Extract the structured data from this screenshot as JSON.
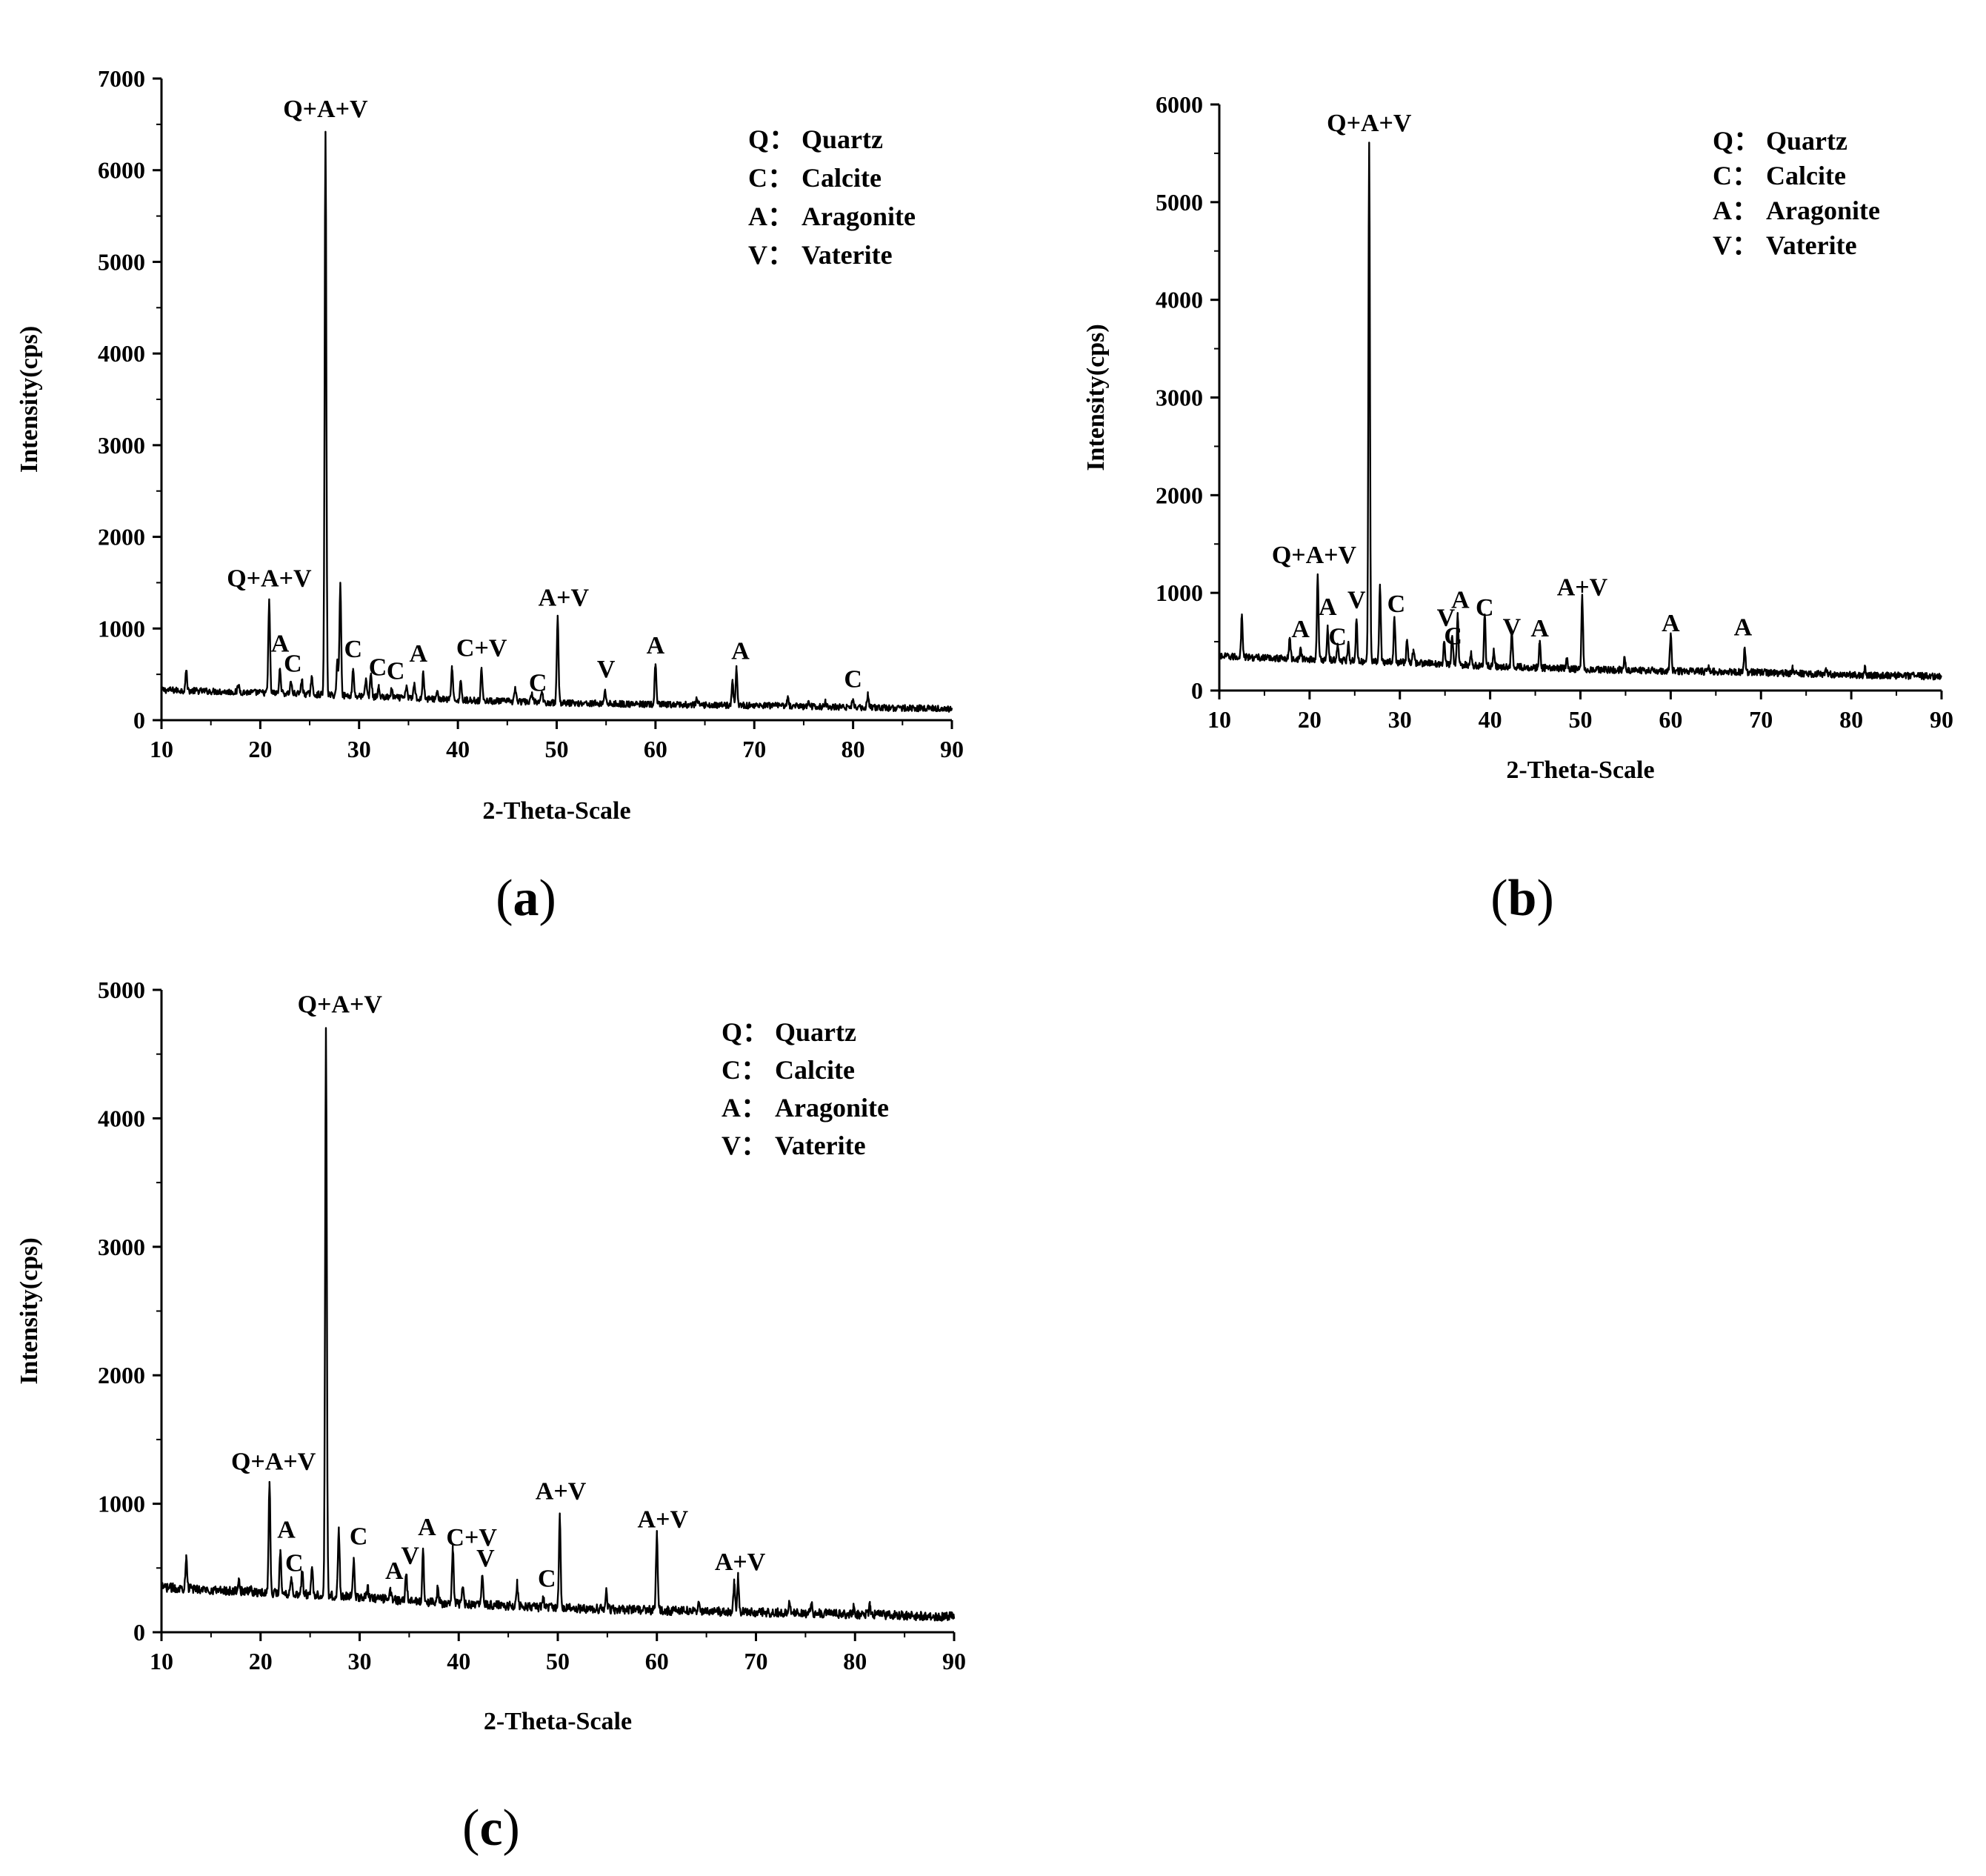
{
  "chart_data": [
    {
      "id": "a",
      "type": "line",
      "panel_label": "a",
      "xlabel": "2-Theta-Scale",
      "ylabel": "Intensity(cps)",
      "xlim": [
        10,
        90
      ],
      "ylim": [
        0,
        7000
      ],
      "xticks": [
        10,
        20,
        30,
        40,
        50,
        60,
        70,
        80,
        90
      ],
      "yticks": [
        0,
        1000,
        2000,
        3000,
        4000,
        5000,
        6000,
        7000
      ],
      "legend": [
        "Q：Quartz",
        "C：Calcite",
        "A：Aragonite",
        "V：Vaterite"
      ],
      "baseline": [
        [
          10,
          330
        ],
        [
          20,
          300
        ],
        [
          26,
          280
        ],
        [
          30,
          260
        ],
        [
          40,
          220
        ],
        [
          50,
          190
        ],
        [
          60,
          170
        ],
        [
          70,
          160
        ],
        [
          80,
          140
        ],
        [
          90,
          125
        ]
      ],
      "peaks": [
        {
          "x": 12.5,
          "y": 540
        },
        {
          "x": 17.8,
          "y": 380
        },
        {
          "x": 20.9,
          "y": 1300
        },
        {
          "x": 22.0,
          "y": 560
        },
        {
          "x": 23.1,
          "y": 420
        },
        {
          "x": 24.2,
          "y": 440
        },
        {
          "x": 25.2,
          "y": 470
        },
        {
          "x": 26.6,
          "y": 6420
        },
        {
          "x": 27.8,
          "y": 640
        },
        {
          "x": 28.1,
          "y": 1500
        },
        {
          "x": 29.4,
          "y": 560
        },
        {
          "x": 30.7,
          "y": 450
        },
        {
          "x": 31.2,
          "y": 510
        },
        {
          "x": 32.0,
          "y": 360
        },
        {
          "x": 33.3,
          "y": 330
        },
        {
          "x": 34.8,
          "y": 380
        },
        {
          "x": 35.6,
          "y": 410
        },
        {
          "x": 36.5,
          "y": 520
        },
        {
          "x": 37.9,
          "y": 320
        },
        {
          "x": 39.4,
          "y": 560
        },
        {
          "x": 40.3,
          "y": 430
        },
        {
          "x": 42.4,
          "y": 560
        },
        {
          "x": 45.8,
          "y": 360
        },
        {
          "x": 47.5,
          "y": 300
        },
        {
          "x": 48.5,
          "y": 310
        },
        {
          "x": 50.1,
          "y": 1140
        },
        {
          "x": 54.9,
          "y": 330
        },
        {
          "x": 60.0,
          "y": 610
        },
        {
          "x": 64.2,
          "y": 230
        },
        {
          "x": 67.8,
          "y": 420
        },
        {
          "x": 68.2,
          "y": 560
        },
        {
          "x": 73.4,
          "y": 240
        },
        {
          "x": 75.5,
          "y": 210
        },
        {
          "x": 77.2,
          "y": 200
        },
        {
          "x": 80.0,
          "y": 230
        },
        {
          "x": 81.5,
          "y": 280
        }
      ],
      "annotations": [
        {
          "text": "Q+A+V",
          "x": 26.6,
          "y": 6530
        },
        {
          "text": "Q+A+V",
          "x": 20.9,
          "y": 1410
        },
        {
          "text": "A",
          "x": 22.0,
          "y": 700
        },
        {
          "text": "C",
          "x": 23.3,
          "y": 480
        },
        {
          "text": "C",
          "x": 29.4,
          "y": 640
        },
        {
          "text": "C",
          "x": 31.9,
          "y": 440
        },
        {
          "text": "C",
          "x": 33.7,
          "y": 400
        },
        {
          "text": "A",
          "x": 36.0,
          "y": 590
        },
        {
          "text": "C+V",
          "x": 42.4,
          "y": 650
        },
        {
          "text": "A+V",
          "x": 50.7,
          "y": 1200
        },
        {
          "text": "C",
          "x": 48.1,
          "y": 270
        },
        {
          "text": "V",
          "x": 55.0,
          "y": 420
        },
        {
          "text": "A",
          "x": 60.0,
          "y": 680
        },
        {
          "text": "A",
          "x": 68.6,
          "y": 620
        },
        {
          "text": "C",
          "x": 80.0,
          "y": 310
        }
      ]
    },
    {
      "id": "b",
      "type": "line",
      "panel_label": "b",
      "xlabel": "2-Theta-Scale",
      "ylabel": "Intensity(cps)",
      "xlim": [
        10,
        90
      ],
      "ylim": [
        0,
        6000
      ],
      "xticks": [
        10,
        20,
        30,
        40,
        50,
        60,
        70,
        80,
        90
      ],
      "yticks": [
        0,
        1000,
        2000,
        3000,
        4000,
        5000,
        6000
      ],
      "legend": [
        "Q：Quartz",
        "C：Calcite",
        "A：Aragonite",
        "V：Vaterite"
      ],
      "baseline": [
        [
          10,
          350
        ],
        [
          20,
          320
        ],
        [
          26,
          300
        ],
        [
          30,
          290
        ],
        [
          40,
          250
        ],
        [
          50,
          220
        ],
        [
          60,
          200
        ],
        [
          70,
          185
        ],
        [
          80,
          160
        ],
        [
          90,
          145
        ]
      ],
      "peaks": [
        {
          "x": 12.5,
          "y": 780
        },
        {
          "x": 17.8,
          "y": 540
        },
        {
          "x": 19.0,
          "y": 420
        },
        {
          "x": 20.9,
          "y": 1190
        },
        {
          "x": 22.0,
          "y": 640
        },
        {
          "x": 23.1,
          "y": 480
        },
        {
          "x": 24.3,
          "y": 500
        },
        {
          "x": 25.2,
          "y": 720
        },
        {
          "x": 26.6,
          "y": 5610
        },
        {
          "x": 27.8,
          "y": 1060
        },
        {
          "x": 29.4,
          "y": 740
        },
        {
          "x": 30.8,
          "y": 520
        },
        {
          "x": 31.5,
          "y": 420
        },
        {
          "x": 34.9,
          "y": 500
        },
        {
          "x": 35.8,
          "y": 560
        },
        {
          "x": 36.4,
          "y": 760
        },
        {
          "x": 37.9,
          "y": 390
        },
        {
          "x": 39.4,
          "y": 780
        },
        {
          "x": 40.4,
          "y": 420
        },
        {
          "x": 42.4,
          "y": 620
        },
        {
          "x": 45.5,
          "y": 510
        },
        {
          "x": 48.5,
          "y": 330
        },
        {
          "x": 50.2,
          "y": 980
        },
        {
          "x": 54.9,
          "y": 340
        },
        {
          "x": 60.0,
          "y": 580
        },
        {
          "x": 64.2,
          "y": 260
        },
        {
          "x": 68.2,
          "y": 440
        },
        {
          "x": 73.5,
          "y": 230
        },
        {
          "x": 77.2,
          "y": 210
        },
        {
          "x": 81.5,
          "y": 230
        }
      ],
      "annotations": [
        {
          "text": "Q+A+V",
          "x": 26.6,
          "y": 5680
        },
        {
          "text": "Q+A+V",
          "x": 20.5,
          "y": 1260
        },
        {
          "text": "A",
          "x": 19.0,
          "y": 500
        },
        {
          "text": "A",
          "x": 22.0,
          "y": 730
        },
        {
          "text": "C",
          "x": 23.1,
          "y": 420
        },
        {
          "text": "V",
          "x": 25.2,
          "y": 800
        },
        {
          "text": "C",
          "x": 29.6,
          "y": 760
        },
        {
          "text": "V",
          "x": 35.1,
          "y": 620
        },
        {
          "text": "C",
          "x": 35.9,
          "y": 430
        },
        {
          "text": "A",
          "x": 36.7,
          "y": 800
        },
        {
          "text": "C",
          "x": 39.4,
          "y": 720
        },
        {
          "text": "V",
          "x": 42.4,
          "y": 520
        },
        {
          "text": "A",
          "x": 45.5,
          "y": 510
        },
        {
          "text": "A+V",
          "x": 50.2,
          "y": 930
        },
        {
          "text": "A",
          "x": 60.0,
          "y": 560
        },
        {
          "text": "A",
          "x": 68.0,
          "y": 520
        }
      ]
    },
    {
      "id": "c",
      "type": "line",
      "panel_label": "c",
      "xlabel": "2-Theta-Scale",
      "ylabel": "Intensity(cps)",
      "xlim": [
        10,
        90
      ],
      "ylim": [
        0,
        5000
      ],
      "xticks": [
        10,
        20,
        30,
        40,
        50,
        60,
        70,
        80,
        90
      ],
      "yticks": [
        0,
        1000,
        2000,
        3000,
        4000,
        5000
      ],
      "legend": [
        "Q：Quartz",
        "C：Calcite",
        "A：Aragonite",
        "V：Vaterite"
      ],
      "baseline": [
        [
          10,
          350
        ],
        [
          20,
          310
        ],
        [
          26,
          290
        ],
        [
          30,
          270
        ],
        [
          40,
          220
        ],
        [
          50,
          190
        ],
        [
          60,
          170
        ],
        [
          70,
          155
        ],
        [
          80,
          140
        ],
        [
          90,
          120
        ]
      ],
      "peaks": [
        {
          "x": 12.5,
          "y": 600
        },
        {
          "x": 17.8,
          "y": 420
        },
        {
          "x": 19.0,
          "y": 350
        },
        {
          "x": 20.9,
          "y": 1170
        },
        {
          "x": 22.0,
          "y": 640
        },
        {
          "x": 23.1,
          "y": 430
        },
        {
          "x": 24.2,
          "y": 470
        },
        {
          "x": 25.2,
          "y": 500
        },
        {
          "x": 26.6,
          "y": 4700
        },
        {
          "x": 27.9,
          "y": 790
        },
        {
          "x": 29.4,
          "y": 580
        },
        {
          "x": 30.8,
          "y": 350
        },
        {
          "x": 33.1,
          "y": 330
        },
        {
          "x": 34.7,
          "y": 450
        },
        {
          "x": 36.4,
          "y": 640
        },
        {
          "x": 37.9,
          "y": 350
        },
        {
          "x": 39.4,
          "y": 640
        },
        {
          "x": 40.4,
          "y": 350
        },
        {
          "x": 42.4,
          "y": 440
        },
        {
          "x": 45.9,
          "y": 380
        },
        {
          "x": 48.5,
          "y": 280
        },
        {
          "x": 50.2,
          "y": 890
        },
        {
          "x": 54.9,
          "y": 340
        },
        {
          "x": 60.0,
          "y": 760
        },
        {
          "x": 64.2,
          "y": 230
        },
        {
          "x": 67.8,
          "y": 380
        },
        {
          "x": 68.2,
          "y": 430
        },
        {
          "x": 73.4,
          "y": 230
        },
        {
          "x": 75.6,
          "y": 210
        },
        {
          "x": 79.9,
          "y": 200
        },
        {
          "x": 81.5,
          "y": 210
        }
      ],
      "annotations": [
        {
          "text": "Q+A+V",
          "x": 28.0,
          "y": 4790
        },
        {
          "text": "Q+A+V",
          "x": 21.3,
          "y": 1230
        },
        {
          "text": "A",
          "x": 22.6,
          "y": 700
        },
        {
          "text": "C",
          "x": 23.4,
          "y": 440
        },
        {
          "text": "C",
          "x": 29.9,
          "y": 650
        },
        {
          "text": "A",
          "x": 33.5,
          "y": 380
        },
        {
          "text": "V",
          "x": 35.1,
          "y": 500
        },
        {
          "text": "A",
          "x": 36.8,
          "y": 720
        },
        {
          "text": "C+V",
          "x": 41.3,
          "y": 640
        },
        {
          "text": "V",
          "x": 42.7,
          "y": 480
        },
        {
          "text": "C",
          "x": 48.9,
          "y": 320
        },
        {
          "text": "A+V",
          "x": 50.3,
          "y": 1000
        },
        {
          "text": "A+V",
          "x": 60.6,
          "y": 780
        },
        {
          "text": "A+V",
          "x": 68.4,
          "y": 450
        }
      ]
    }
  ]
}
